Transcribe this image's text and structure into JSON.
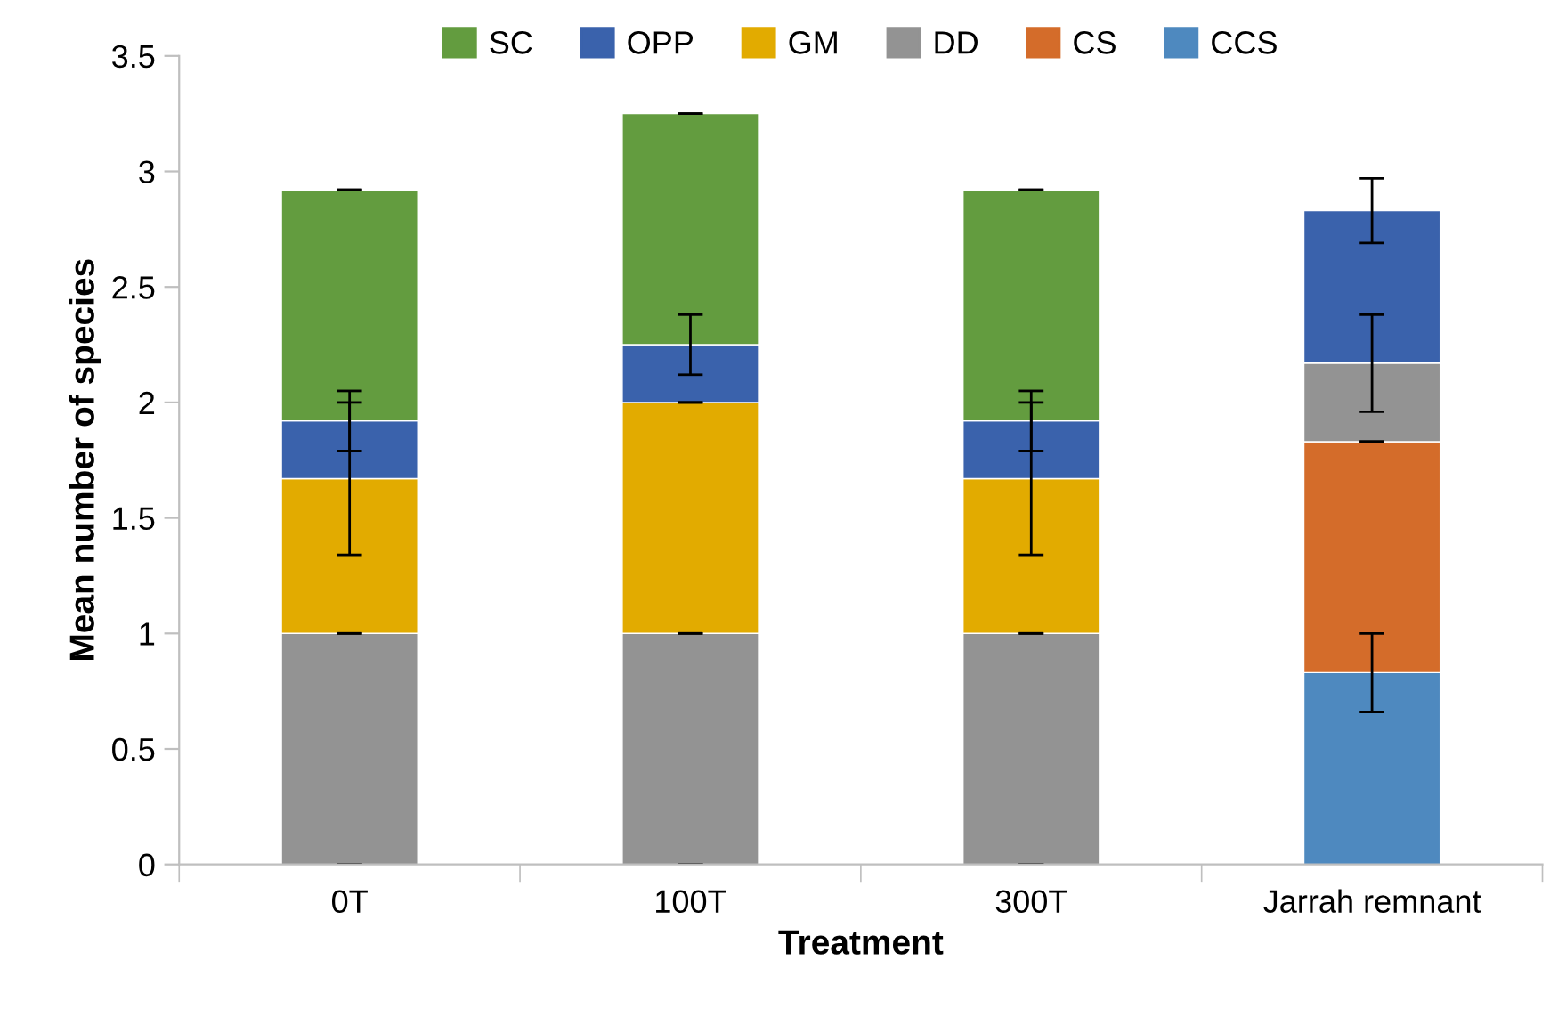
{
  "chart_data": {
    "type": "bar",
    "stacked": true,
    "xlabel": "Treatment",
    "ylabel": "Mean number of species",
    "categories": [
      "0T",
      "100T",
      "300T",
      "Jarrah remnant"
    ],
    "ylim": [
      0,
      3.5
    ],
    "yticks": [
      0,
      0.5,
      1,
      1.5,
      2,
      2.5,
      3,
      3.5
    ],
    "grid": false,
    "legend": "top",
    "series": [
      {
        "name": "CCS",
        "color": "#4e89bf",
        "values": [
          0,
          0,
          0,
          0.83
        ],
        "errors": [
          0,
          0,
          0,
          0.17
        ]
      },
      {
        "name": "CS",
        "color": "#d46c2a",
        "values": [
          0,
          0,
          0,
          1.0
        ],
        "errors": [
          0,
          0,
          0,
          0
        ]
      },
      {
        "name": "DD",
        "color": "#939393",
        "values": [
          1.0,
          1.0,
          1.0,
          0.34
        ],
        "errors": [
          0,
          0,
          0,
          0.21
        ]
      },
      {
        "name": "GM",
        "color": "#e2ab00",
        "values": [
          0.67,
          1.0,
          0.67,
          null
        ],
        "errors": [
          0.33,
          0,
          0.33,
          null
        ]
      },
      {
        "name": "OPP",
        "color": "#3a62ac",
        "values": [
          0.25,
          0.25,
          0.25,
          0.66
        ],
        "errors": [
          0.13,
          0.13,
          0.13,
          0.14
        ]
      },
      {
        "name": "SC",
        "color": "#639c3f",
        "values": [
          1.0,
          1.0,
          1.0,
          null
        ],
        "errors": [
          0,
          0,
          0,
          null
        ]
      }
    ]
  }
}
